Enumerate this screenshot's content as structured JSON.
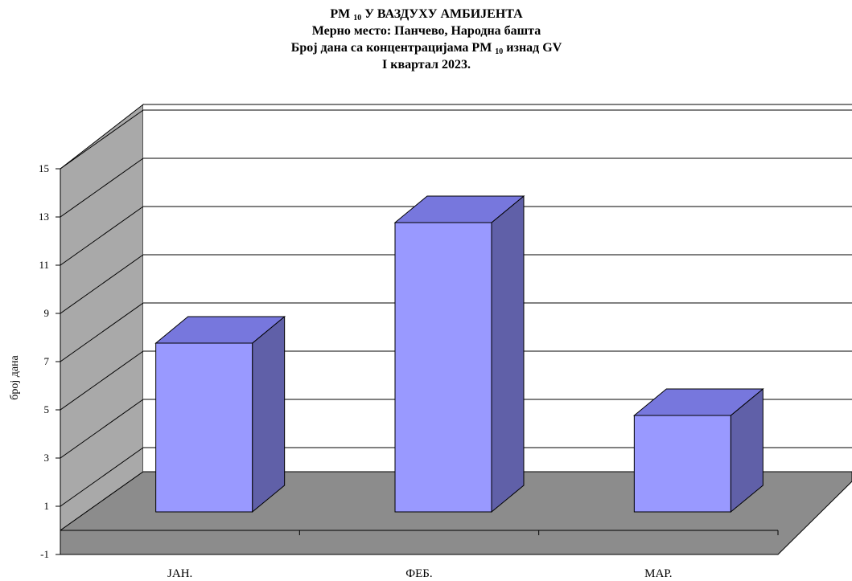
{
  "chart_data": {
    "type": "bar",
    "title_lines": [
      {
        "main": "PM ",
        "sub": "10",
        "rest": " У ВАЗДУХУ АМБИЈЕНТА"
      },
      {
        "main": "Мерно место: Панчево, Народна башта",
        "sub": "",
        "rest": ""
      },
      {
        "main": "Број дана са концентрацијама PM ",
        "sub": "10",
        "rest": " изнад GV"
      },
      {
        "main": "I квартал 2023.",
        "sub": "",
        "rest": ""
      }
    ],
    "ylabel": "број дана",
    "xlabel": "",
    "categories": [
      "ЈАН.",
      "ФЕБ.",
      "МАР."
    ],
    "values": [
      7,
      12,
      4
    ],
    "ylim": [
      -1,
      15
    ],
    "yticks": [
      -1,
      1,
      3,
      5,
      7,
      9,
      11,
      13,
      15
    ],
    "grid": true,
    "legend": "none",
    "three_d": true,
    "colors": {
      "bar_front": "#9999ff",
      "bar_side": "#6060a8",
      "bar_top": "#7777dd",
      "wall": "#a9a9a9",
      "floor": "#8c8c8c",
      "edge": "#000000"
    }
  }
}
